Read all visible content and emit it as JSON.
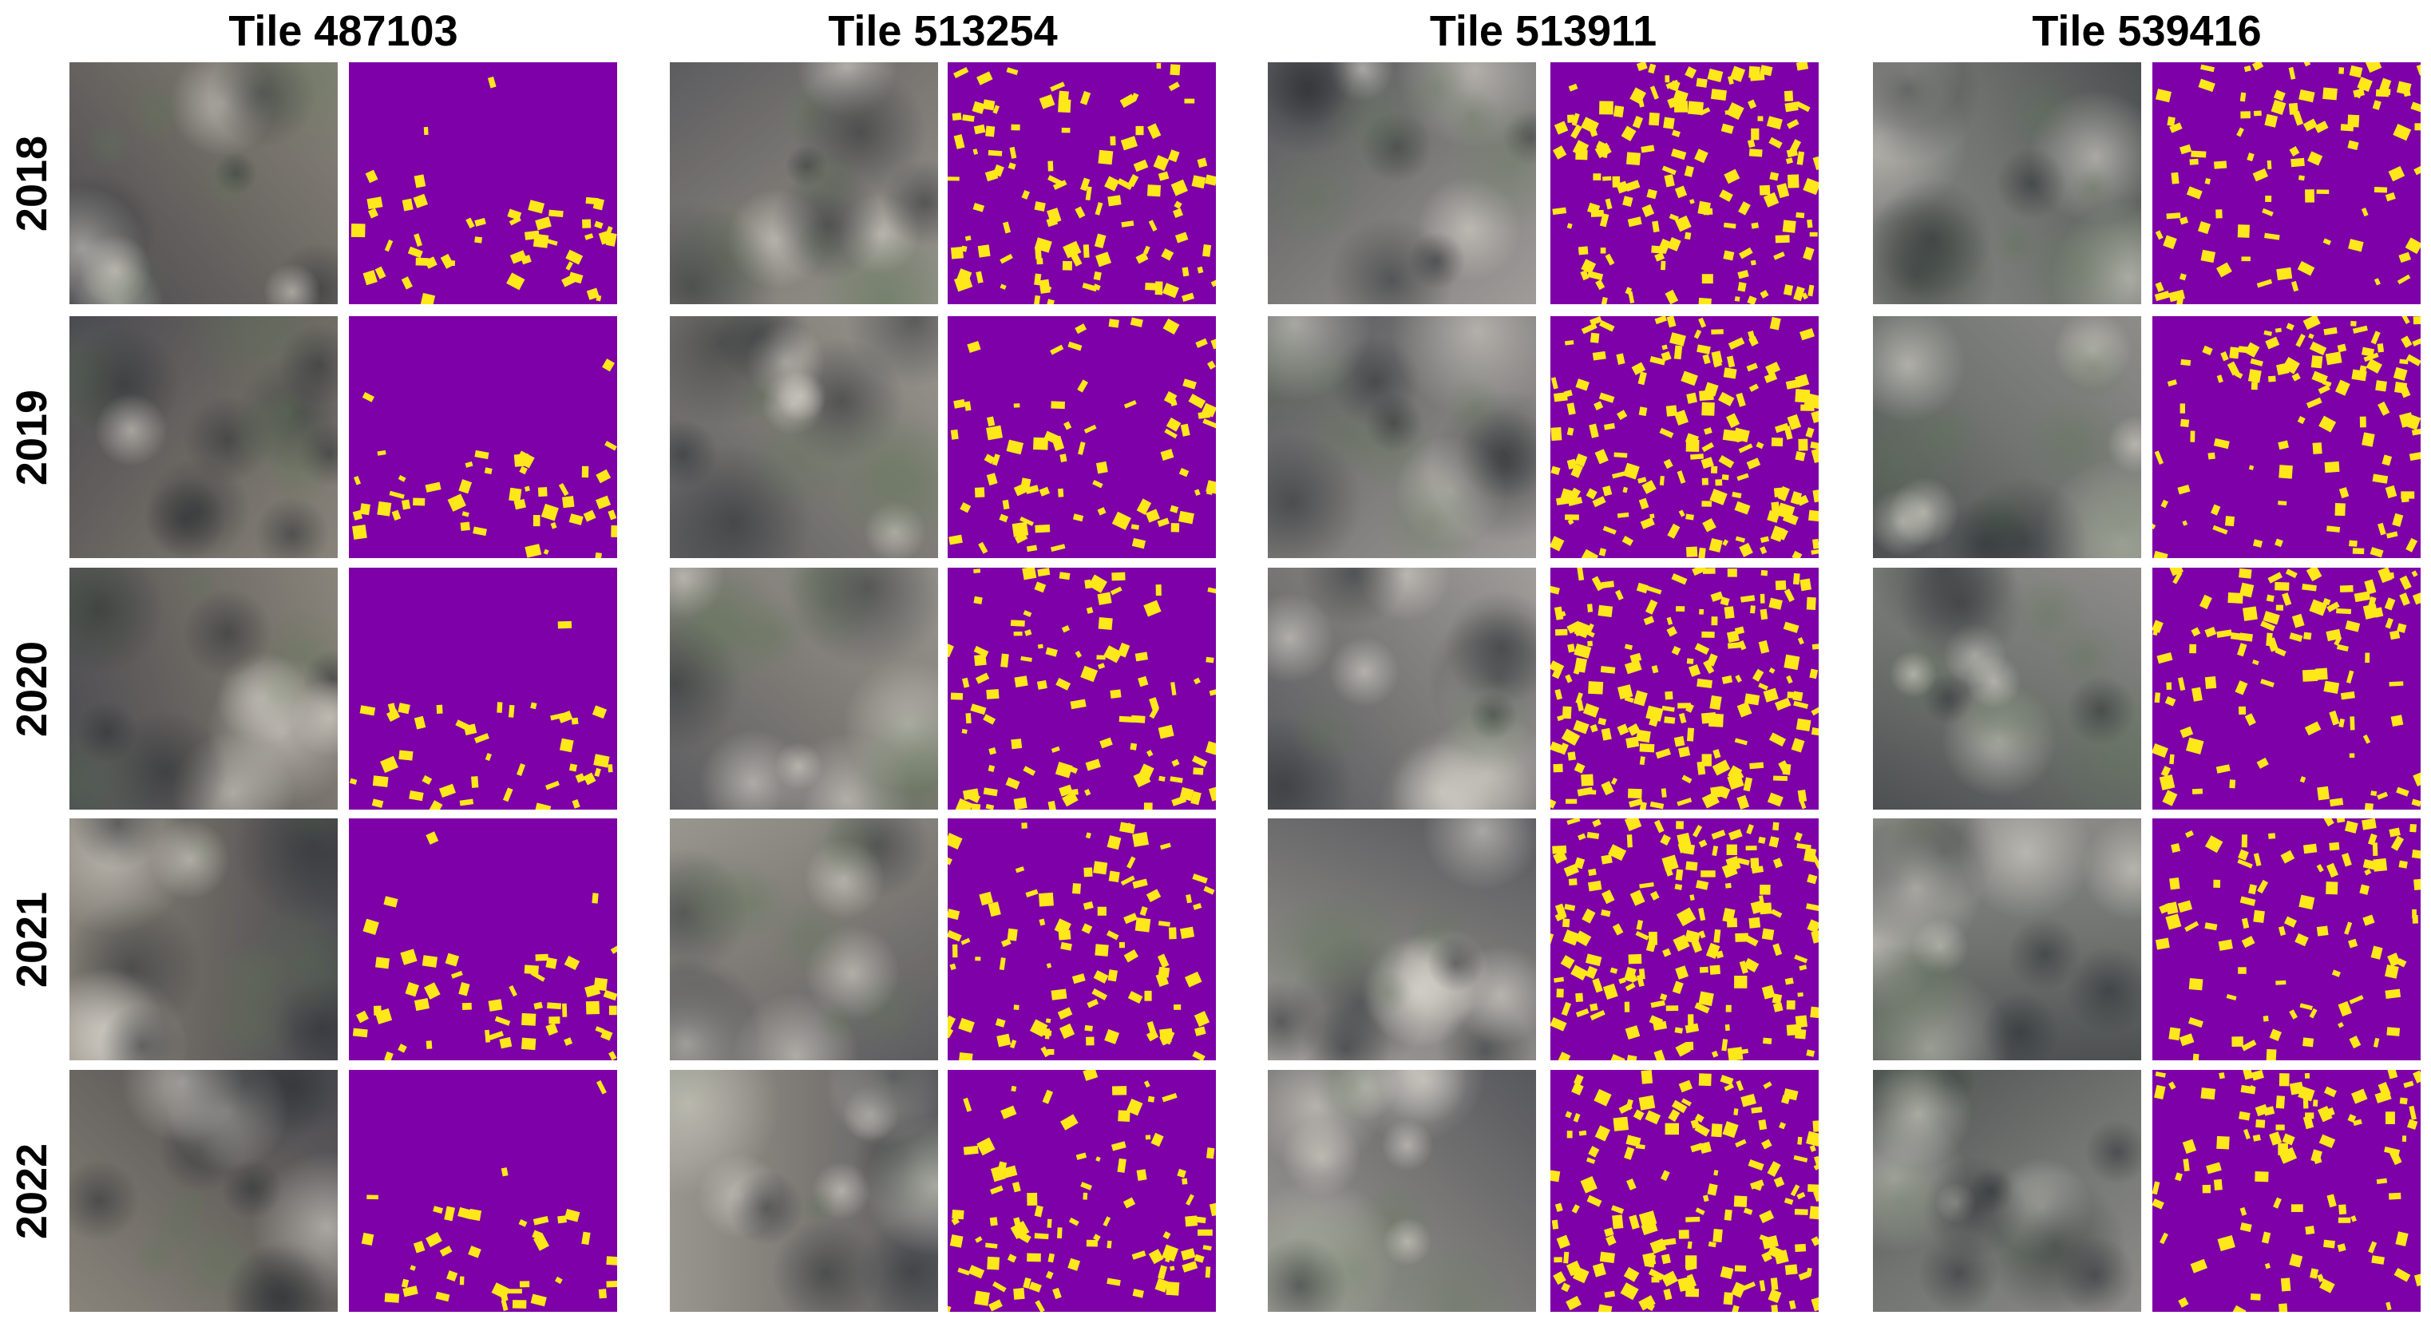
{
  "columns": [
    {
      "title": "Tile 487103"
    },
    {
      "title": "Tile 513254"
    },
    {
      "title": "Tile 513911"
    },
    {
      "title": "Tile 539416"
    }
  ],
  "rows": [
    {
      "year": "2018"
    },
    {
      "year": "2019"
    },
    {
      "year": "2020"
    },
    {
      "year": "2021"
    },
    {
      "year": "2022"
    }
  ]
}
